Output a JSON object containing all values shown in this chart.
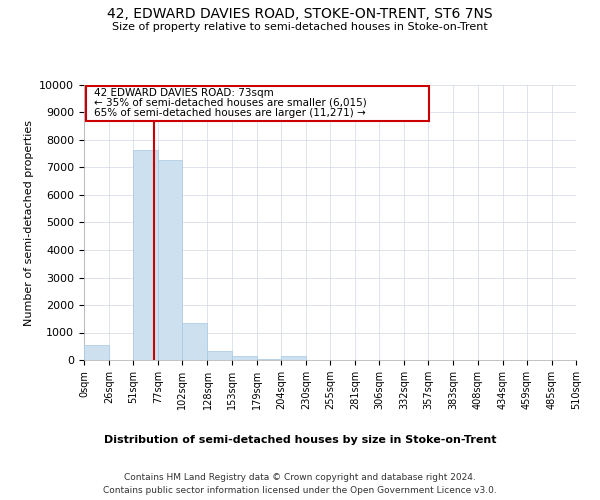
{
  "title": "42, EDWARD DAVIES ROAD, STOKE-ON-TRENT, ST6 7NS",
  "subtitle": "Size of property relative to semi-detached houses in Stoke-on-Trent",
  "xlabel": "Distribution of semi-detached houses by size in Stoke-on-Trent",
  "ylabel": "Number of semi-detached properties",
  "footnote1": "Contains HM Land Registry data © Crown copyright and database right 2024.",
  "footnote2": "Contains public sector information licensed under the Open Government Licence v3.0.",
  "annotation_line1": "42 EDWARD DAVIES ROAD: 73sqm",
  "annotation_line2": "← 35% of semi-detached houses are smaller (6,015)",
  "annotation_line3": "65% of semi-detached houses are larger (11,271) →",
  "bar_color": "#cce0f0",
  "bar_edge_color": "#aac8e0",
  "red_line_color": "#cc0000",
  "annotation_box_color": "#cc0000",
  "grid_color": "#d0d8e4",
  "background_color": "#ffffff",
  "bins": [
    0,
    26,
    51,
    77,
    102,
    128,
    153,
    179,
    204,
    230,
    255,
    281,
    306,
    332,
    357,
    383,
    408,
    434,
    459,
    485,
    510
  ],
  "bin_labels": [
    "0sqm",
    "26sqm",
    "51sqm",
    "77sqm",
    "102sqm",
    "128sqm",
    "153sqm",
    "179sqm",
    "204sqm",
    "230sqm",
    "255sqm",
    "281sqm",
    "306sqm",
    "332sqm",
    "357sqm",
    "383sqm",
    "408sqm",
    "434sqm",
    "459sqm",
    "485sqm",
    "510sqm"
  ],
  "values": [
    550,
    0,
    7620,
    7280,
    1330,
    330,
    150,
    50,
    130,
    0,
    0,
    0,
    0,
    0,
    0,
    0,
    0,
    0,
    0,
    0
  ],
  "property_size": 73,
  "ylim": [
    0,
    10000
  ],
  "yticks": [
    0,
    1000,
    2000,
    3000,
    4000,
    5000,
    6000,
    7000,
    8000,
    9000,
    10000
  ]
}
